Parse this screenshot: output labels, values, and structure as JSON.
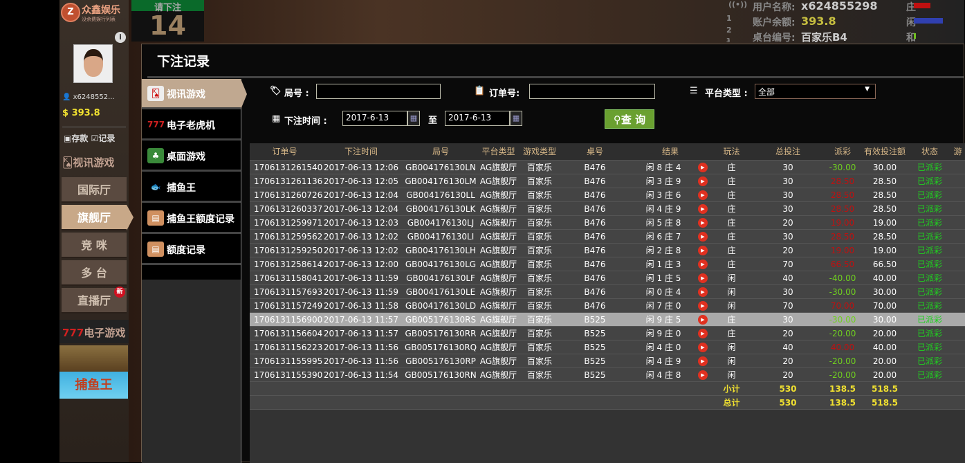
{
  "brand": {
    "name": "众鑫娱乐",
    "tagline": "没余费娱行列表"
  },
  "user": {
    "name": "x6248552...",
    "balance": "393.8",
    "deposit": "存款",
    "record": "记录"
  },
  "left_nav": {
    "live_label": "视讯游戏",
    "halls": [
      "国际厅",
      "旗舰厅",
      "竞 咪",
      "多 台",
      "直播厅"
    ],
    "active_hall": "旗舰厅",
    "new_badge": "新",
    "egame_label": "电子游戏",
    "fish_banner": "捕鱼王"
  },
  "timer": {
    "label": "请下注",
    "value": "14"
  },
  "top_info": {
    "username_label": "用户名称:",
    "username": "x624855298",
    "balance_label": "账户余额:",
    "balance": "393.8",
    "table_label": "桌台编号:",
    "table": "百家乐B4",
    "road": [
      "庄",
      "闲",
      "和"
    ],
    "nums": [
      "1",
      "2",
      "3"
    ]
  },
  "modal": {
    "title": "下注记录",
    "menu": [
      {
        "label": "视讯游戏",
        "icon": "cards-icon"
      },
      {
        "label": "电子老虎机",
        "icon": "777-icon"
      },
      {
        "label": "桌面游戏",
        "icon": "chips-icon"
      },
      {
        "label": "捕鱼王",
        "icon": "fish-icon"
      },
      {
        "label": "捕鱼王额度记录",
        "icon": "document-icon"
      },
      {
        "label": "额度记录",
        "icon": "document-icon"
      }
    ],
    "filters": {
      "round_label": "局号 :",
      "round_value": "",
      "order_label": "订单号:",
      "order_value": "",
      "platform_label": "平台类型 :",
      "platform_value": "全部",
      "time_label": "下注时间 :",
      "from": "2017-6-13",
      "to_label": "至",
      "to": "2017-6-13",
      "query": "查 询"
    },
    "columns": [
      "订单号",
      "下注时间",
      "局号",
      "平台类型",
      "游戏类型",
      "桌号",
      "结果",
      "玩法",
      "总投注",
      "派彩",
      "有效投注额",
      "状态",
      "游"
    ],
    "rows": [
      [
        "1706131261540",
        "2017-06-13 12:06",
        "GB004176130LN",
        "AG旗舰厅",
        "百家乐",
        "B476",
        "闲 8 庄 4",
        "庄",
        "30",
        "-30.00",
        "30.00",
        "已派彩"
      ],
      [
        "1706131261136",
        "2017-06-13 12:05",
        "GB004176130LM",
        "AG旗舰厅",
        "百家乐",
        "B476",
        "闲 3 庄 9",
        "庄",
        "30",
        "28.50",
        "28.50",
        "已派彩"
      ],
      [
        "1706131260726",
        "2017-06-13 12:04",
        "GB004176130LL",
        "AG旗舰厅",
        "百家乐",
        "B476",
        "闲 3 庄 6",
        "庄",
        "30",
        "28.50",
        "28.50",
        "已派彩"
      ],
      [
        "1706131260337",
        "2017-06-13 12:04",
        "GB004176130LK",
        "AG旗舰厅",
        "百家乐",
        "B476",
        "闲 4 庄 9",
        "庄",
        "30",
        "28.50",
        "28.50",
        "已派彩"
      ],
      [
        "1706131259971",
        "2017-06-13 12:03",
        "GB004176130LJ",
        "AG旗舰厅",
        "百家乐",
        "B476",
        "闲 5 庄 8",
        "庄",
        "20",
        "19.00",
        "19.00",
        "已派彩"
      ],
      [
        "1706131259562",
        "2017-06-13 12:02",
        "GB004176130LI",
        "AG旗舰厅",
        "百家乐",
        "B476",
        "闲 6 庄 7",
        "庄",
        "30",
        "28.50",
        "28.50",
        "已派彩"
      ],
      [
        "1706131259250",
        "2017-06-13 12:02",
        "GB004176130LH",
        "AG旗舰厅",
        "百家乐",
        "B476",
        "闲 2 庄 8",
        "庄",
        "20",
        "19.00",
        "19.00",
        "已派彩"
      ],
      [
        "1706131258614",
        "2017-06-13 12:00",
        "GB004176130LG",
        "AG旗舰厅",
        "百家乐",
        "B476",
        "闲 1 庄 3",
        "庄",
        "70",
        "66.50",
        "66.50",
        "已派彩"
      ],
      [
        "1706131158041",
        "2017-06-13 11:59",
        "GB004176130LF",
        "AG旗舰厅",
        "百家乐",
        "B476",
        "闲 1 庄 5",
        "闲",
        "40",
        "-40.00",
        "40.00",
        "已派彩"
      ],
      [
        "1706131157693",
        "2017-06-13 11:59",
        "GB004176130LE",
        "AG旗舰厅",
        "百家乐",
        "B476",
        "闲 0 庄 4",
        "闲",
        "30",
        "-30.00",
        "30.00",
        "已派彩"
      ],
      [
        "1706131157249",
        "2017-06-13 11:58",
        "GB004176130LD",
        "AG旗舰厅",
        "百家乐",
        "B476",
        "闲 7 庄 0",
        "闲",
        "70",
        "70.00",
        "70.00",
        "已派彩"
      ],
      [
        "1706131156900",
        "2017-06-13 11:57",
        "GB005176130RS",
        "AG旗舰厅",
        "百家乐",
        "B525",
        "闲 9 庄 5",
        "庄",
        "30",
        "-30.00",
        "30.00",
        "已派彩"
      ],
      [
        "1706131156604",
        "2017-06-13 11:57",
        "GB005176130RR",
        "AG旗舰厅",
        "百家乐",
        "B525",
        "闲 9 庄 0",
        "庄",
        "20",
        "-20.00",
        "20.00",
        "已派彩"
      ],
      [
        "1706131156223",
        "2017-06-13 11:56",
        "GB005176130RQ",
        "AG旗舰厅",
        "百家乐",
        "B525",
        "闲 4 庄 0",
        "闲",
        "40",
        "40.00",
        "40.00",
        "已派彩"
      ],
      [
        "1706131155995",
        "2017-06-13 11:56",
        "GB005176130RP",
        "AG旗舰厅",
        "百家乐",
        "B525",
        "闲 4 庄 9",
        "闲",
        "20",
        "-20.00",
        "20.00",
        "已派彩"
      ],
      [
        "1706131155390",
        "2017-06-13 11:54",
        "GB005176130RN",
        "AG旗舰厅",
        "百家乐",
        "B525",
        "闲 4 庄 8",
        "闲",
        "20",
        "-20.00",
        "20.00",
        "已派彩"
      ]
    ],
    "selected_row": 11,
    "subtotal": {
      "label": "小计",
      "bet": "530",
      "payout": "138.5",
      "valid": "518.5"
    },
    "total": {
      "label": "总计",
      "bet": "530",
      "payout": "138.5",
      "valid": "518.5"
    }
  },
  "colors": {
    "loss": "#70d020",
    "win": "#c01010",
    "status": "#20d020",
    "total": "#f0e030",
    "active": "#c0a890"
  }
}
